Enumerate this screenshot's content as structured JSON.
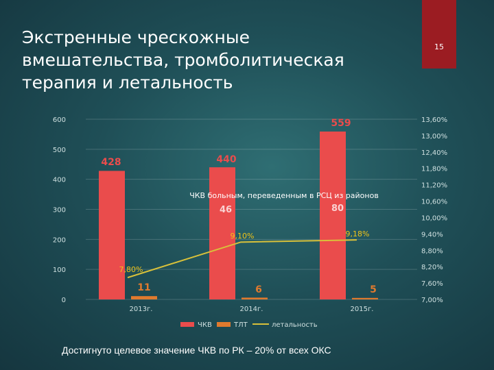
{
  "slide": {
    "title_line1": "Экстренные чрескожные",
    "title_line2": "вмешательства, тромболитическая",
    "title_line3": "терапия и летальность",
    "page_number": "15",
    "footer": "Достигнуто целевое значение ЧКВ по РК – 20% от всех ОКС"
  },
  "colors": {
    "pci": "#ea4c4c",
    "tlt": "#e07a2e",
    "mortality": "#d9c13a",
    "value_label": "#ea4c4c",
    "mortality_label": "#f0c419",
    "badge": "#9b1c22"
  },
  "chart_data": {
    "type": "bar",
    "categories": [
      "2013г.",
      "2014г.",
      "2015г."
    ],
    "series": [
      {
        "name": "ЧКВ",
        "values": [
          428,
          440,
          559
        ]
      },
      {
        "name": "ТЛТ",
        "values": [
          11,
          6,
          5
        ]
      },
      {
        "name": "летальность",
        "type": "line",
        "axis": "right",
        "values": [
          7.8,
          9.1,
          9.18
        ],
        "labels": [
          "7,80%",
          "9,10%",
          "9,18%"
        ]
      }
    ],
    "annotation": "ЧКВ больным,  переведенным в РСЦ из районов",
    "transfer_values": [
      null,
      46,
      80
    ],
    "ylim_left": [
      0,
      600
    ],
    "yticks_left": [
      "600",
      "500",
      "400",
      "300",
      "200",
      "100",
      "0"
    ],
    "ylim_right": [
      7.0,
      13.6
    ],
    "yticks_right": [
      "13,60%",
      "13,00%",
      "12,40%",
      "11,80%",
      "11,20%",
      "10,60%",
      "10,00%",
      "9,40%",
      "8,80%",
      "8,20%",
      "7,60%",
      "7,00%"
    ],
    "grid": true,
    "legend_position": "bottom"
  }
}
